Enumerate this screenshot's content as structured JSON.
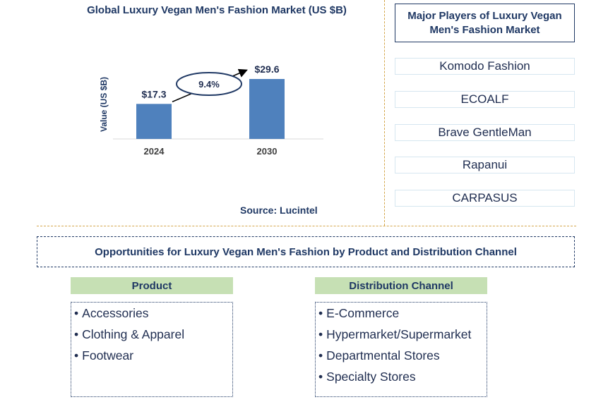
{
  "chart_data": {
    "type": "bar",
    "title": "Global Luxury Vegan Men's Fashion Market (US $B)",
    "ylabel": "Value (US $B)",
    "categories": [
      "2024",
      "2030"
    ],
    "values": [
      17.3,
      29.6
    ],
    "value_labels": [
      "$17.3",
      "$29.6"
    ],
    "annotation": "9.4%",
    "bar_color": "#4f81bd",
    "grid": false
  },
  "source": "Source: Lucintel",
  "players": {
    "title": "Major Players of Luxury Vegan Men's Fashion Market",
    "items": [
      "Komodo Fashion",
      "ECOALF",
      "Brave GentleMan",
      "Rapanui",
      "CARPASUS"
    ]
  },
  "opportunities": {
    "title": "Opportunities for Luxury Vegan Men's Fashion by Product and Distribution Channel",
    "product": {
      "header": "Product",
      "items": [
        "Accessories",
        "Clothing & Apparel",
        "Footwear"
      ]
    },
    "distribution": {
      "header": "Distribution Channel",
      "items": [
        "E-Commerce",
        "Hypermarket/Supermarket",
        "Departmental Stores",
        "Specialty Stores"
      ]
    }
  },
  "colors": {
    "title_navy": "#1f3864",
    "accent_green": "#c6e0b4",
    "divider_gold": "#d4a64a"
  }
}
